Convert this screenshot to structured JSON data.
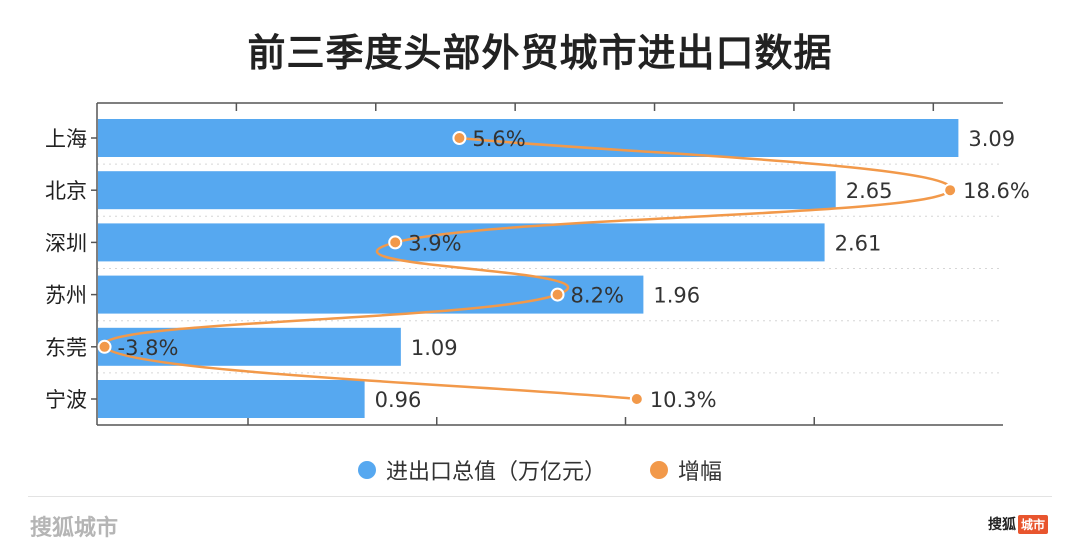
{
  "title": "前三季度头部外贸城市进出口数据",
  "legend": {
    "total_label": "进出口总值（万亿元）",
    "growth_label": "增幅"
  },
  "footer": {
    "brand": "搜狐城市",
    "logo_text": "搜狐",
    "logo_tag": "城市"
  },
  "colors": {
    "bar": "#56a8f0",
    "line": "#f2994a"
  },
  "chart_data": {
    "type": "bar",
    "orientation": "horizontal",
    "categories": [
      "上海",
      "北京",
      "深圳",
      "苏州",
      "东莞",
      "宁波"
    ],
    "series": [
      {
        "name": "进出口总值（万亿元）",
        "values": [
          3.09,
          2.65,
          2.61,
          1.96,
          1.09,
          0.96
        ],
        "labels": [
          "3.09",
          "2.65",
          "2.61",
          "1.96",
          "1.09",
          "0.96"
        ]
      },
      {
        "name": "增幅",
        "type": "line",
        "values": [
          5.6,
          18.6,
          3.9,
          8.2,
          -3.8,
          10.3
        ],
        "labels": [
          "5.6%",
          "18.6%",
          "3.9%",
          "8.2%",
          "-3.8%",
          "10.3%"
        ]
      }
    ],
    "xlim_total": [
      0,
      3.25
    ],
    "xlim_growth": [
      -4.0,
      20.0
    ],
    "grid": true
  }
}
